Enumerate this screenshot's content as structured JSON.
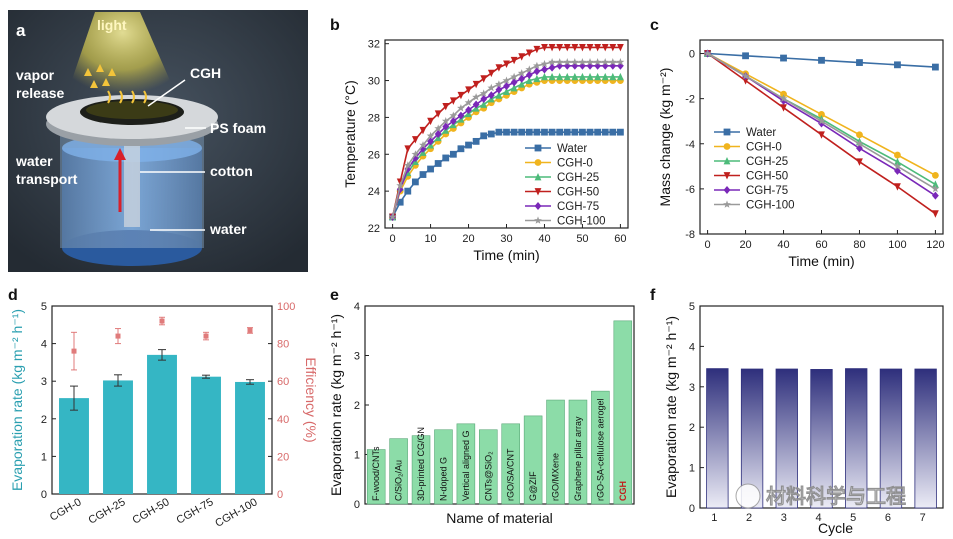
{
  "figure": {
    "panel_labels": [
      "a",
      "b",
      "c",
      "d",
      "e",
      "f"
    ],
    "watermark": "材料科学与工程"
  },
  "diagram": {
    "labels": {
      "light": "light",
      "vapor": "vapor",
      "release": "release",
      "cgh": "CGH",
      "ps_foam": "PS foam",
      "water_line1": "water",
      "water_line2": "transport",
      "cotton": "cotton",
      "water_bottom": "water"
    }
  },
  "chart_data": [
    {
      "panel": "b",
      "type": "line",
      "xlabel": "Time (min)",
      "ylabel": "Temperature (°C)",
      "xlim": [
        -2,
        62
      ],
      "ylim": [
        22,
        32.2
      ],
      "xticks": [
        0,
        10,
        20,
        30,
        40,
        50,
        60
      ],
      "yticks": [
        22,
        24,
        26,
        28,
        30,
        32
      ],
      "legend_position": "bottom-right",
      "series": [
        {
          "name": "Water",
          "color": "#3A6EA5",
          "marker": "square",
          "x": [
            0,
            2,
            4,
            6,
            8,
            10,
            12,
            14,
            16,
            18,
            20,
            22,
            24,
            26,
            28,
            30,
            32,
            34,
            36,
            38,
            40,
            42,
            44,
            46,
            48,
            50,
            52,
            54,
            56,
            58,
            60
          ],
          "y": [
            22.6,
            23.4,
            24.0,
            24.5,
            24.9,
            25.2,
            25.5,
            25.8,
            26.0,
            26.3,
            26.5,
            26.7,
            27.0,
            27.1,
            27.2,
            27.2,
            27.2,
            27.2,
            27.2,
            27.2,
            27.2,
            27.2,
            27.2,
            27.2,
            27.2,
            27.2,
            27.2,
            27.2,
            27.2,
            27.2,
            27.2
          ]
        },
        {
          "name": "CGH-0",
          "color": "#F0B41E",
          "marker": "circle",
          "x": [
            0,
            2,
            4,
            6,
            8,
            10,
            12,
            14,
            16,
            18,
            20,
            22,
            24,
            26,
            28,
            30,
            32,
            34,
            36,
            38,
            40,
            42,
            44,
            46,
            48,
            50,
            52,
            54,
            56,
            58,
            60
          ],
          "y": [
            22.6,
            24.0,
            24.8,
            25.4,
            25.9,
            26.3,
            26.7,
            27.1,
            27.4,
            27.7,
            28.0,
            28.3,
            28.5,
            28.8,
            29.0,
            29.2,
            29.4,
            29.6,
            29.8,
            29.9,
            30.0,
            30.0,
            30.0,
            30.0,
            30.0,
            30.0,
            30.0,
            30.0,
            30.0,
            30.0,
            30.0
          ]
        },
        {
          "name": "CGH-25",
          "color": "#4DBB7A",
          "marker": "triangle",
          "x": [
            0,
            2,
            4,
            6,
            8,
            10,
            12,
            14,
            16,
            18,
            20,
            22,
            24,
            26,
            28,
            30,
            32,
            34,
            36,
            38,
            40,
            42,
            44,
            46,
            48,
            50,
            52,
            54,
            56,
            58,
            60
          ],
          "y": [
            22.6,
            24.2,
            25.0,
            25.6,
            26.1,
            26.5,
            26.9,
            27.3,
            27.6,
            27.9,
            28.2,
            28.5,
            28.7,
            29.0,
            29.2,
            29.4,
            29.6,
            29.8,
            30.0,
            30.1,
            30.2,
            30.2,
            30.2,
            30.2,
            30.2,
            30.2,
            30.2,
            30.2,
            30.2,
            30.2,
            30.2
          ]
        },
        {
          "name": "CGH-50",
          "color": "#C0201E",
          "marker": "triangle-down",
          "x": [
            0,
            2,
            4,
            6,
            8,
            10,
            12,
            14,
            16,
            18,
            20,
            22,
            24,
            26,
            28,
            30,
            32,
            34,
            36,
            38,
            40,
            42,
            44,
            46,
            48,
            50,
            52,
            54,
            56,
            58,
            60
          ],
          "y": [
            22.6,
            24.5,
            26.3,
            26.8,
            27.3,
            27.8,
            28.2,
            28.6,
            28.9,
            29.2,
            29.5,
            29.8,
            30.1,
            30.4,
            30.7,
            30.9,
            31.1,
            31.3,
            31.5,
            31.7,
            31.8,
            31.8,
            31.8,
            31.8,
            31.8,
            31.8,
            31.8,
            31.8,
            31.8,
            31.8,
            31.8
          ]
        },
        {
          "name": "CGH-75",
          "color": "#7A28B8",
          "marker": "diamond",
          "x": [
            0,
            2,
            4,
            6,
            8,
            10,
            12,
            14,
            16,
            18,
            20,
            22,
            24,
            26,
            28,
            30,
            32,
            34,
            36,
            38,
            40,
            42,
            44,
            46,
            48,
            50,
            52,
            54,
            56,
            58,
            60
          ],
          "y": [
            22.6,
            24.1,
            25.2,
            25.8,
            26.3,
            26.7,
            27.1,
            27.5,
            27.8,
            28.1,
            28.4,
            28.7,
            29.0,
            29.2,
            29.5,
            29.7,
            29.9,
            30.1,
            30.3,
            30.5,
            30.6,
            30.7,
            30.8,
            30.8,
            30.8,
            30.8,
            30.8,
            30.8,
            30.8,
            30.8,
            30.8
          ]
        },
        {
          "name": "CGH-100",
          "color": "#9A9A9A",
          "marker": "star",
          "x": [
            0,
            2,
            4,
            6,
            8,
            10,
            12,
            14,
            16,
            18,
            20,
            22,
            24,
            26,
            28,
            30,
            32,
            34,
            36,
            38,
            40,
            42,
            44,
            46,
            48,
            50,
            52,
            54,
            56,
            58,
            60
          ],
          "y": [
            22.6,
            24.3,
            25.4,
            26.0,
            26.5,
            27.0,
            27.4,
            27.8,
            28.1,
            28.5,
            28.8,
            29.1,
            29.3,
            29.6,
            29.8,
            30.0,
            30.2,
            30.4,
            30.6,
            30.8,
            30.9,
            31.0,
            31.0,
            31.0,
            31.0,
            31.0,
            31.0,
            31.0,
            31.0,
            31.0,
            31.0
          ]
        }
      ]
    },
    {
      "panel": "c",
      "type": "line",
      "xlabel": "Time (min)",
      "ylabel": "Mass change (kg m⁻²)",
      "xlim": [
        -4,
        124
      ],
      "ylim": [
        -8,
        0.6
      ],
      "xticks": [
        0,
        20,
        40,
        60,
        80,
        100,
        120
      ],
      "yticks": [
        0,
        -2,
        -4,
        -6,
        -8
      ],
      "legend_position": "bottom-left",
      "series": [
        {
          "name": "Water",
          "color": "#3A6EA5",
          "marker": "square",
          "x": [
            0,
            20,
            40,
            60,
            80,
            100,
            120
          ],
          "y": [
            0,
            -0.1,
            -0.2,
            -0.3,
            -0.4,
            -0.5,
            -0.6
          ]
        },
        {
          "name": "CGH-0",
          "color": "#F0B41E",
          "marker": "circle",
          "x": [
            0,
            20,
            40,
            60,
            80,
            100,
            120
          ],
          "y": [
            0,
            -0.9,
            -1.8,
            -2.7,
            -3.6,
            -4.5,
            -5.4
          ]
        },
        {
          "name": "CGH-25",
          "color": "#4DBB7A",
          "marker": "triangle",
          "x": [
            0,
            20,
            40,
            60,
            80,
            100,
            120
          ],
          "y": [
            0,
            -1.0,
            -2.0,
            -2.9,
            -3.9,
            -4.8,
            -5.8
          ]
        },
        {
          "name": "CGH-50",
          "color": "#C0201E",
          "marker": "triangle-down",
          "x": [
            0,
            20,
            40,
            60,
            80,
            100,
            120
          ],
          "y": [
            0,
            -1.2,
            -2.4,
            -3.6,
            -4.8,
            -5.9,
            -7.1
          ]
        },
        {
          "name": "CGH-75",
          "color": "#7A28B8",
          "marker": "diamond",
          "x": [
            0,
            20,
            40,
            60,
            80,
            100,
            120
          ],
          "y": [
            0,
            -1.0,
            -2.1,
            -3.1,
            -4.2,
            -5.2,
            -6.3
          ]
        },
        {
          "name": "CGH-100",
          "color": "#9A9A9A",
          "marker": "star",
          "x": [
            0,
            20,
            40,
            60,
            80,
            100,
            120
          ],
          "y": [
            0,
            -1.0,
            -2.0,
            -3.0,
            -4.0,
            -5.0,
            -6.0
          ]
        }
      ]
    },
    {
      "panel": "d",
      "type": "bar",
      "categories": [
        "CGH-0",
        "CGH-25",
        "CGH-50",
        "CGH-75",
        "CGH-100"
      ],
      "ylabel": "Evaporation rate (kg m⁻² h⁻¹)",
      "ylabel2": "Efficiency (%)",
      "ylim": [
        0,
        5
      ],
      "ylim2": [
        0,
        100
      ],
      "yticks": [
        0,
        1,
        2,
        3,
        4,
        5
      ],
      "yticks2": [
        0,
        20,
        40,
        60,
        80,
        100
      ],
      "bar_color": "#35B6C4",
      "efficiency_color": "#E07B7B",
      "series": [
        {
          "name": "Evaporation rate",
          "values": [
            2.55,
            3.02,
            3.7,
            3.12,
            2.98
          ],
          "errors": [
            0.32,
            0.15,
            0.14,
            0.04,
            0.06
          ]
        },
        {
          "name": "Efficiency",
          "values": [
            76,
            84,
            92,
            84,
            87
          ],
          "errors": [
            10,
            4,
            2,
            2,
            1.5
          ]
        }
      ]
    },
    {
      "panel": "e",
      "type": "bar",
      "xlabel": "Name of material",
      "ylabel": "Evaporation rate (kg m⁻² h⁻¹)",
      "ylim": [
        0,
        4
      ],
      "yticks": [
        0,
        1,
        2,
        3,
        4
      ],
      "bar_color": "#8CDCA8",
      "categories": [
        "F-wood/CNTs",
        "C/SiO₂/Au",
        "3D-printed CG/GN",
        "N-doped G",
        "Vertical aligned G",
        "CNTs@SiO₂",
        "rGO/SA/CNT",
        "G@ZIF",
        "rGO/MXene",
        "Graphene pillar array",
        "rGO-SA-cellulose aerogel",
        "CGH"
      ],
      "values": [
        1.1,
        1.32,
        1.38,
        1.5,
        1.62,
        1.5,
        1.62,
        1.78,
        2.1,
        2.1,
        2.28,
        3.7
      ]
    },
    {
      "panel": "f",
      "type": "bar",
      "xlabel": "Cycle",
      "ylabel": "Evaporation rate (kg m⁻² h⁻¹)",
      "ylim": [
        0,
        5
      ],
      "yticks": [
        0,
        1,
        2,
        3,
        4,
        5
      ],
      "bar_color_top": "#2E2F7C",
      "bar_color_bottom": "#ECECF6",
      "categories": [
        "1",
        "2",
        "3",
        "4",
        "5",
        "6",
        "7"
      ],
      "values": [
        3.45,
        3.44,
        3.44,
        3.43,
        3.45,
        3.44,
        3.44
      ]
    }
  ]
}
